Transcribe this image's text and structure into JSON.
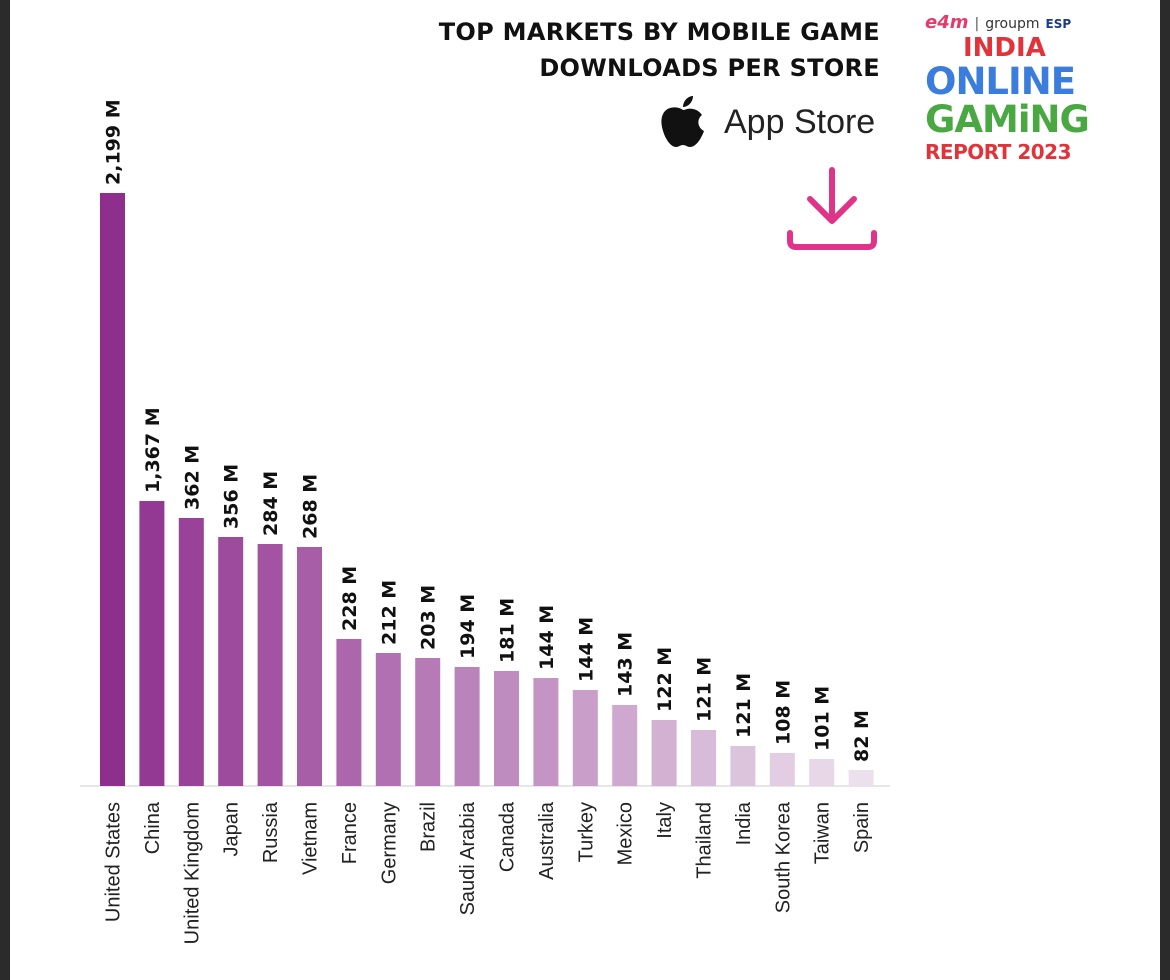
{
  "header": {
    "title_line1": "TOP MARKETS BY MOBILE GAME",
    "title_line2": "DOWNLOADS PER STORE",
    "store_name": "App Store",
    "store_icon": "apple-icon",
    "download_icon": "download-icon"
  },
  "logo": {
    "brand1": "e4m",
    "separator": "|",
    "brand2": "groupm",
    "brand3": "ESP",
    "line1": "INDIA",
    "line2": "ONLINE",
    "line3": "GAMiNG",
    "line4": "REPORT 2023"
  },
  "colors": {
    "accent_pink": "#e0338a",
    "bar_start": "#8e2f8e",
    "bar_end": "#ece0ec",
    "logo_red": "#e0333a",
    "logo_blue": "#3b7ddd",
    "logo_green": "#4aa843"
  },
  "chart_data": {
    "type": "bar",
    "title": "TOP MARKETS BY MOBILE GAME DOWNLOADS PER STORE",
    "categories": [
      "United States",
      "China",
      "United Kingdom",
      "Japan",
      "Russia",
      "Vietnam",
      "France",
      "Germany",
      "Brazil",
      "Saudi Arabia",
      "Canada",
      "Australia",
      "Turkey",
      "Mexico",
      "Italy",
      "Thailand",
      "India",
      "South Korea",
      "Taiwan",
      "Spain"
    ],
    "values": [
      2199,
      1367,
      362,
      356,
      284,
      268,
      228,
      212,
      203,
      194,
      181,
      144,
      144,
      143,
      122,
      121,
      121,
      108,
      101,
      82
    ],
    "value_labels": [
      "2,199 M",
      "1,367 M",
      "362 M",
      "356 M",
      "284 M",
      "268 M",
      "228 M",
      "212 M",
      "203 M",
      "194 M",
      "181 M",
      "144 M",
      "144 M",
      "143 M",
      "122 M",
      "121 M",
      "121 M",
      "108 M",
      "101 M",
      "82 M"
    ],
    "bar_heights_as_drawn": [
      593,
      285,
      268,
      249,
      242,
      239,
      147,
      133,
      128,
      119,
      115,
      108,
      96,
      81,
      66,
      56,
      40,
      33,
      27,
      16
    ],
    "xlabel": "",
    "ylabel": "",
    "grid": false,
    "legend": "none"
  }
}
